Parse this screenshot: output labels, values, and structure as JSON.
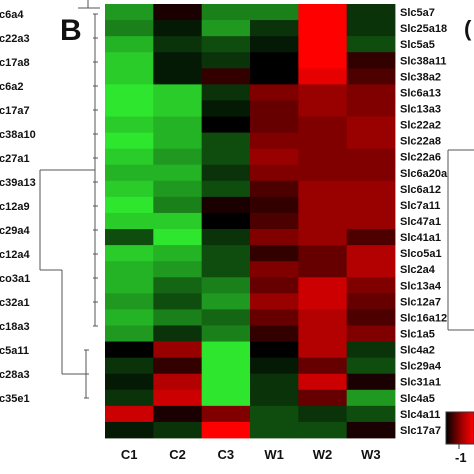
{
  "panel_letter": "B",
  "left_labels": [
    "c6a4",
    "c22a3",
    "c17a8",
    "c6a2",
    "c17a7",
    "c38a10",
    "c27a1",
    "c39a13",
    "c12a9",
    "c29a4",
    "c12a4",
    "co3a1",
    "c32a1",
    "c18a3",
    "c5a11",
    "c28a3",
    "c35e1"
  ],
  "right_edge_letter": "(",
  "chart_data": {
    "type": "heatmap",
    "columns": [
      "C1",
      "C2",
      "C3",
      "W1",
      "W2",
      "W3"
    ],
    "rows": [
      "Slc5a7",
      "Slc25a18",
      "Slc5a5",
      "Slc38a11",
      "Slc38a2",
      "Slc6a13",
      "Slc13a3",
      "Slc22a2",
      "Slc22a8",
      "Slc22a6",
      "Slc6a20a",
      "Slc6a12",
      "Slc7a11",
      "Slc47a1",
      "Slc41a1",
      "Slco5a1",
      "Slc2a4",
      "Slc13a4",
      "Slc12a7",
      "Slc16a12",
      "Slc1a5",
      "Slc4a2",
      "Slc29a4",
      "Slc31a1",
      "Slc4a5",
      "Slc4a11",
      "Slc17a7"
    ],
    "values": [
      [
        0.6,
        -0.1,
        0.5,
        0.5,
        -1.0,
        0.2
      ],
      [
        0.5,
        0.1,
        0.6,
        0.2,
        -1.0,
        0.2
      ],
      [
        0.7,
        0.2,
        0.3,
        0.1,
        -1.0,
        0.3
      ],
      [
        0.8,
        0.1,
        0.2,
        0.0,
        -1.0,
        -0.2
      ],
      [
        0.8,
        0.1,
        -0.2,
        0.0,
        -0.9,
        -0.3
      ],
      [
        0.9,
        0.8,
        0.2,
        -0.5,
        -0.6,
        -0.5
      ],
      [
        0.9,
        0.8,
        0.1,
        -0.4,
        -0.6,
        -0.5
      ],
      [
        0.8,
        0.7,
        0.0,
        -0.4,
        -0.5,
        -0.6
      ],
      [
        0.9,
        0.7,
        0.3,
        -0.5,
        -0.5,
        -0.6
      ],
      [
        0.8,
        0.6,
        0.3,
        -0.6,
        -0.5,
        -0.5
      ],
      [
        0.7,
        0.7,
        0.2,
        -0.5,
        -0.5,
        -0.5
      ],
      [
        0.8,
        0.6,
        0.3,
        -0.3,
        -0.6,
        -0.6
      ],
      [
        0.9,
        0.5,
        -0.1,
        -0.2,
        -0.6,
        -0.6
      ],
      [
        0.8,
        0.8,
        0.0,
        -0.3,
        -0.6,
        -0.6
      ],
      [
        0.3,
        0.9,
        0.2,
        -0.5,
        -0.6,
        -0.3
      ],
      [
        0.8,
        0.7,
        0.3,
        -0.2,
        -0.4,
        -0.7
      ],
      [
        0.7,
        0.6,
        0.3,
        -0.5,
        -0.4,
        -0.7
      ],
      [
        0.7,
        0.4,
        0.5,
        -0.4,
        -0.8,
        -0.5
      ],
      [
        0.6,
        0.3,
        0.6,
        -0.6,
        -0.8,
        -0.4
      ],
      [
        0.7,
        0.5,
        0.4,
        -0.4,
        -0.7,
        -0.3
      ],
      [
        0.6,
        0.2,
        0.5,
        -0.2,
        -0.7,
        -0.5
      ],
      [
        0.0,
        -0.6,
        0.9,
        0.0,
        -0.7,
        0.2
      ],
      [
        0.2,
        -0.2,
        0.9,
        0.1,
        -0.4,
        0.3
      ],
      [
        0.1,
        -0.7,
        0.9,
        0.2,
        -0.8,
        -0.1
      ],
      [
        0.2,
        -0.8,
        0.9,
        0.2,
        -0.4,
        0.6
      ],
      [
        -0.8,
        -0.1,
        -0.5,
        0.3,
        0.2,
        0.3
      ],
      [
        0.1,
        0.2,
        -1.0,
        0.3,
        0.3,
        -0.1
      ]
    ],
    "color_scale": {
      "low": "#ff0000",
      "mid": "#000000",
      "high": "#33ff33"
    },
    "legend_tick": "-1",
    "legend_placement": "bottom-right"
  }
}
